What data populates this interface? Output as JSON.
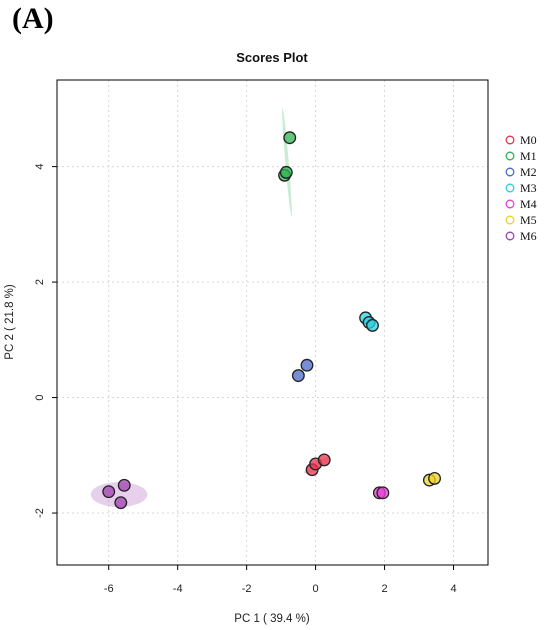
{
  "panel_label": "(A)",
  "chart_data": {
    "type": "scatter",
    "title": "Scores Plot",
    "xlabel": "PC 1 ( 39.4 %)",
    "ylabel": "PC 2 ( 21.8 %)",
    "xlim": [
      -7.5,
      5.0
    ],
    "ylim": [
      -2.9,
      5.5
    ],
    "x_ticks": [
      -6,
      -4,
      -2,
      0,
      2,
      4
    ],
    "y_ticks": [
      -2,
      0,
      2,
      4
    ],
    "grid": true,
    "legend_position": "right",
    "series": [
      {
        "name": "M0",
        "color": "#e8354d",
        "points": [
          [
            -0.1,
            -1.25
          ],
          [
            0.0,
            -1.15
          ],
          [
            0.25,
            -1.08
          ]
        ],
        "ellipse": {
          "cx": 0.05,
          "cy": -1.17,
          "rx": 0.4,
          "ry": 0.1,
          "angle": 20
        }
      },
      {
        "name": "M1",
        "color": "#2db352",
        "points": [
          [
            -0.9,
            3.85
          ],
          [
            -0.85,
            3.9
          ],
          [
            -0.75,
            4.5
          ]
        ],
        "ellipse": {
          "cx": -0.83,
          "cy": 4.08,
          "rx": 0.95,
          "ry": 0.05,
          "angle": -82
        }
      },
      {
        "name": "M2",
        "color": "#4a68c8",
        "points": [
          [
            -0.5,
            0.38
          ],
          [
            -0.25,
            0.56
          ]
        ],
        "ellipse": null
      },
      {
        "name": "M3",
        "color": "#2ad0e2",
        "points": [
          [
            1.45,
            1.38
          ],
          [
            1.55,
            1.3
          ],
          [
            1.65,
            1.25
          ]
        ],
        "ellipse": null
      },
      {
        "name": "M4",
        "color": "#e640d6",
        "points": [
          [
            1.85,
            -1.65
          ],
          [
            1.95,
            -1.65
          ]
        ],
        "ellipse": null
      },
      {
        "name": "M5",
        "color": "#ecd329",
        "points": [
          [
            3.3,
            -1.43
          ],
          [
            3.45,
            -1.4
          ]
        ],
        "ellipse": null
      },
      {
        "name": "M6",
        "color": "#a042b0",
        "points": [
          [
            -6.0,
            -1.63
          ],
          [
            -5.55,
            -1.52
          ],
          [
            -5.65,
            -1.82
          ]
        ],
        "ellipse": {
          "cx": -5.7,
          "cy": -1.68,
          "rx": 0.82,
          "ry": 0.36,
          "angle": 0
        }
      }
    ]
  }
}
